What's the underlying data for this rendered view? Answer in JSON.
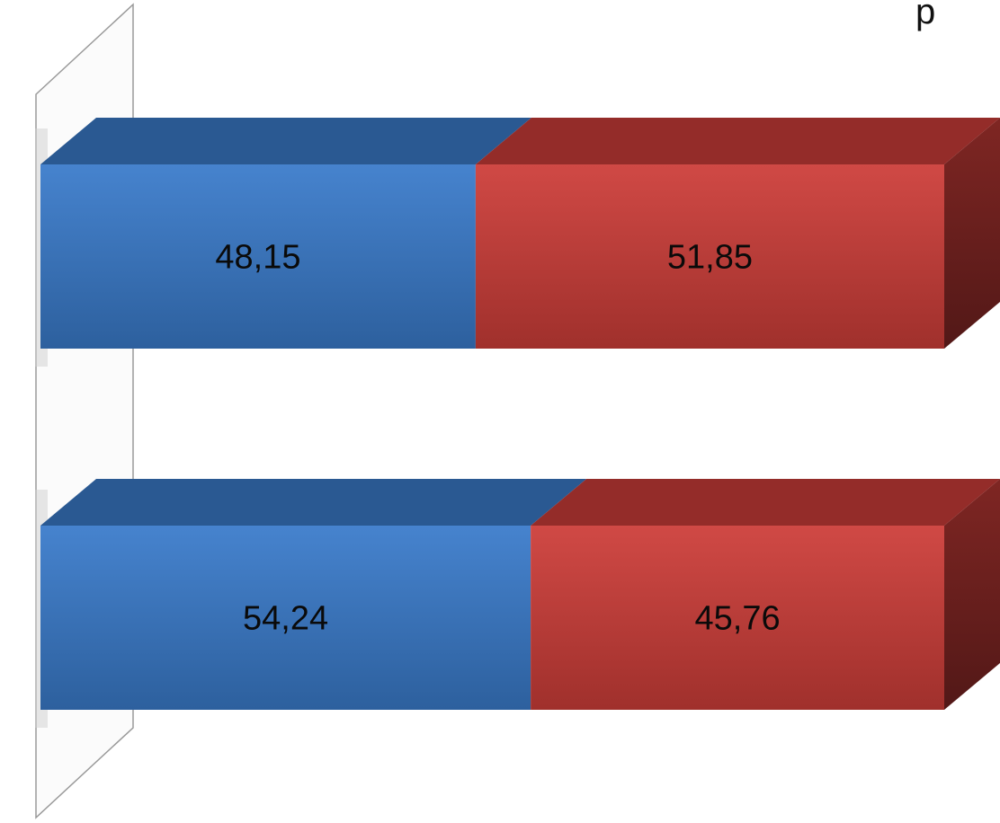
{
  "chart_data": {
    "type": "bar",
    "orientation": "horizontal",
    "stacked": true,
    "stack_mode": "percent",
    "three_d": true,
    "title": "",
    "xlabel": "",
    "ylabel": "",
    "xlim": [
      0,
      100
    ],
    "grid": false,
    "legend": "none",
    "corner_text": "р",
    "categories": [
      "",
      ""
    ],
    "series": [
      {
        "color": "#3A7BCB",
        "values": [
          48.15,
          54.24
        ],
        "labels": [
          "48,15",
          "54,24"
        ]
      },
      {
        "color": "#CD3D39",
        "values": [
          51.85,
          45.76
        ],
        "labels": [
          "51,85",
          "45,76"
        ]
      }
    ]
  }
}
